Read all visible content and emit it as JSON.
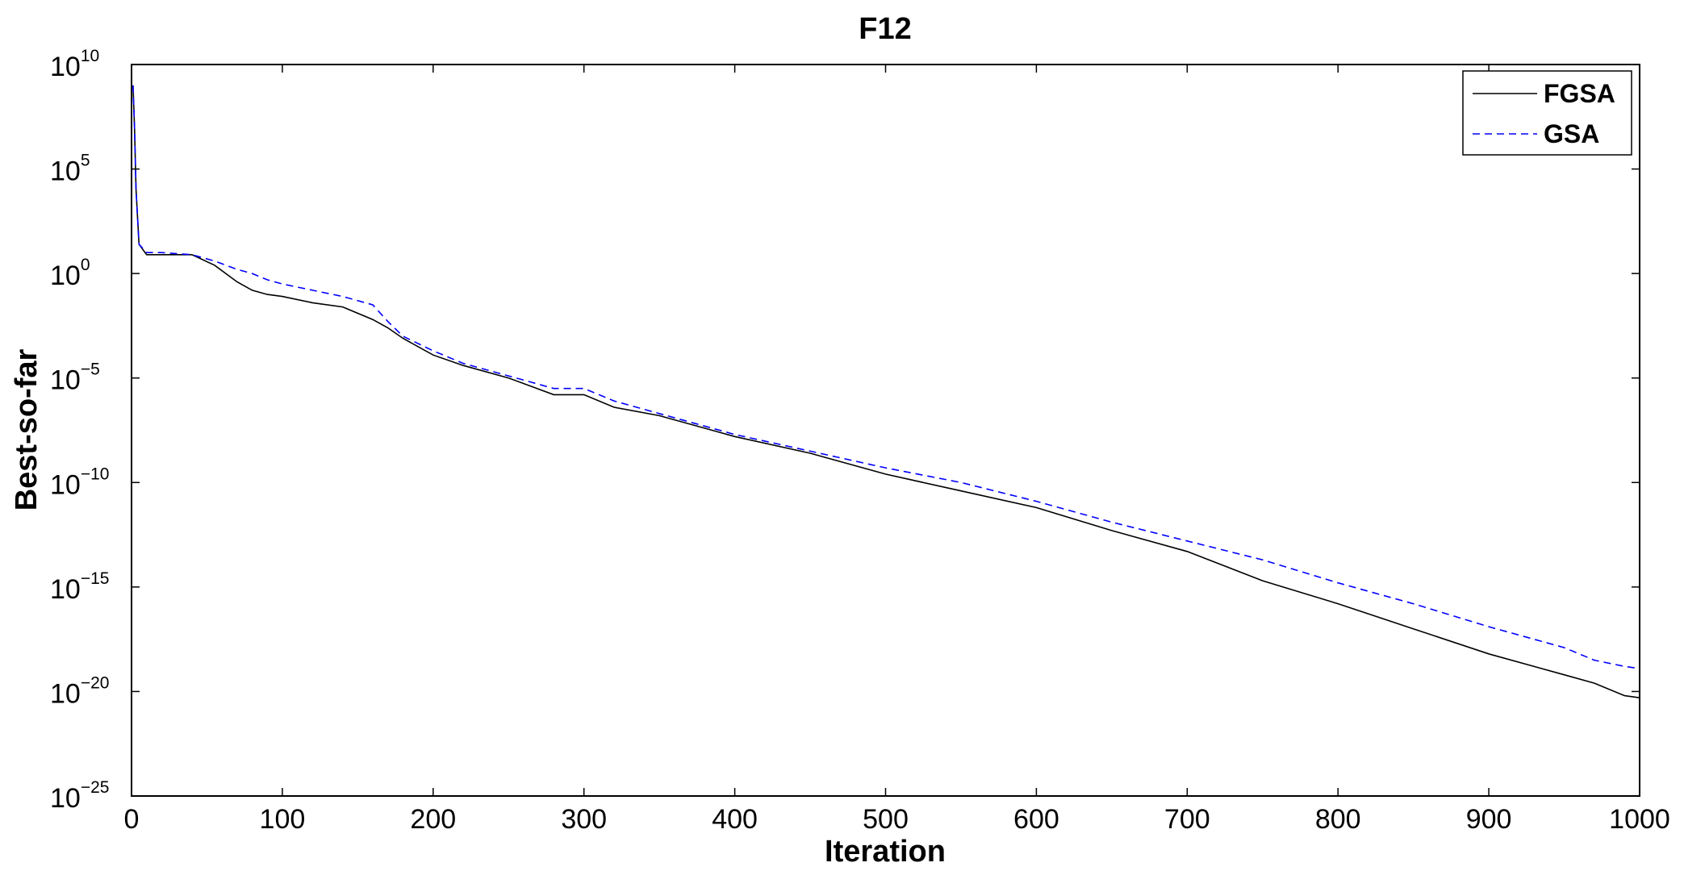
{
  "chart_data": {
    "type": "line",
    "title": "F12",
    "xlabel": "Iteration",
    "ylabel": "Best-so-far",
    "xlim": [
      0,
      1000
    ],
    "ylim_log10": [
      -25,
      10
    ],
    "yscale": "log",
    "grid": false,
    "legend_position": "top-right",
    "x_ticks": [
      "0",
      "100",
      "200",
      "300",
      "400",
      "500",
      "600",
      "700",
      "800",
      "900",
      "1000"
    ],
    "y_ticks": [
      {
        "base": "10",
        "exp": "10"
      },
      {
        "base": "10",
        "exp": "5"
      },
      {
        "base": "10",
        "exp": "0"
      },
      {
        "base": "10",
        "exp": "−5"
      },
      {
        "base": "10",
        "exp": "−10"
      },
      {
        "base": "10",
        "exp": "−15"
      },
      {
        "base": "10",
        "exp": "−20"
      },
      {
        "base": "10",
        "exp": "−25"
      }
    ],
    "series": [
      {
        "name": "FGSA",
        "color": "#000000",
        "style": "solid",
        "x": [
          1,
          2,
          3,
          5,
          10,
          20,
          40,
          55,
          70,
          80,
          90,
          100,
          120,
          140,
          160,
          170,
          180,
          200,
          220,
          250,
          280,
          300,
          320,
          350,
          400,
          450,
          500,
          550,
          600,
          650,
          700,
          750,
          800,
          850,
          900,
          950,
          970,
          990,
          1000
        ],
        "log10y": [
          9.0,
          7.0,
          4.0,
          1.4,
          0.9,
          0.9,
          0.9,
          0.4,
          -0.4,
          -0.8,
          -1.0,
          -1.1,
          -1.4,
          -1.6,
          -2.2,
          -2.6,
          -3.1,
          -3.9,
          -4.4,
          -5.0,
          -5.8,
          -5.8,
          -6.4,
          -6.8,
          -7.8,
          -8.6,
          -9.6,
          -10.4,
          -11.2,
          -12.3,
          -13.3,
          -14.7,
          -15.8,
          -17.0,
          -18.2,
          -19.2,
          -19.6,
          -20.2,
          -20.3
        ]
      },
      {
        "name": "GSA",
        "color": "#0000ff",
        "style": "dashed",
        "x": [
          1,
          2,
          3,
          5,
          10,
          20,
          40,
          55,
          70,
          80,
          90,
          100,
          120,
          140,
          160,
          170,
          180,
          200,
          220,
          250,
          280,
          300,
          320,
          350,
          400,
          450,
          500,
          550,
          600,
          650,
          700,
          750,
          800,
          850,
          900,
          950,
          970,
          990,
          1000
        ],
        "log10y": [
          9.0,
          7.0,
          4.0,
          1.4,
          1.0,
          1.0,
          0.9,
          0.6,
          0.2,
          0.0,
          -0.3,
          -0.5,
          -0.8,
          -1.1,
          -1.5,
          -2.3,
          -3.0,
          -3.7,
          -4.3,
          -4.9,
          -5.5,
          -5.5,
          -6.1,
          -6.7,
          -7.7,
          -8.5,
          -9.3,
          -10.0,
          -10.9,
          -11.9,
          -12.8,
          -13.7,
          -14.8,
          -15.8,
          -16.9,
          -17.9,
          -18.5,
          -18.8,
          -18.9
        ]
      }
    ]
  }
}
